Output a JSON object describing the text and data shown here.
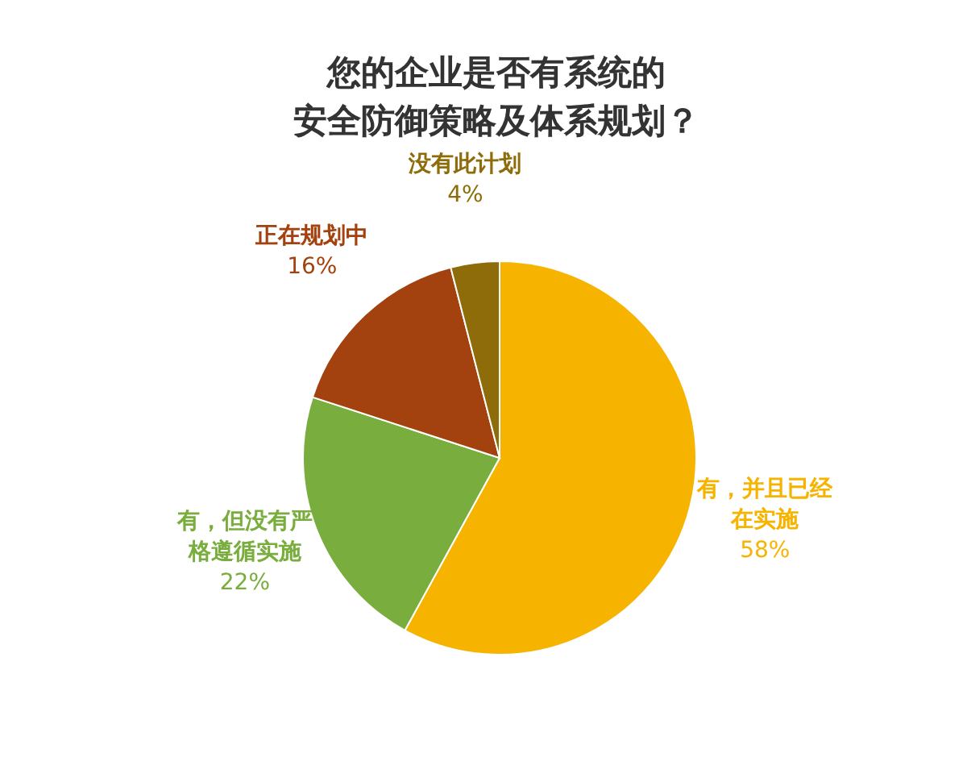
{
  "chart_data": {
    "type": "pie",
    "title": "您的企业是否有系统的安全防御策略及体系规划？",
    "categories": [
      "有，并且已经在实施",
      "有，但没有严格遵循实施",
      "正在规划中",
      "没有此计划"
    ],
    "values": [
      58,
      22,
      16,
      4
    ],
    "value_labels": [
      "58%",
      "22%",
      "16%",
      "4%"
    ],
    "colors": [
      "#f6b400",
      "#79ad3d",
      "#a3420f",
      "#8e6c0a"
    ]
  }
}
